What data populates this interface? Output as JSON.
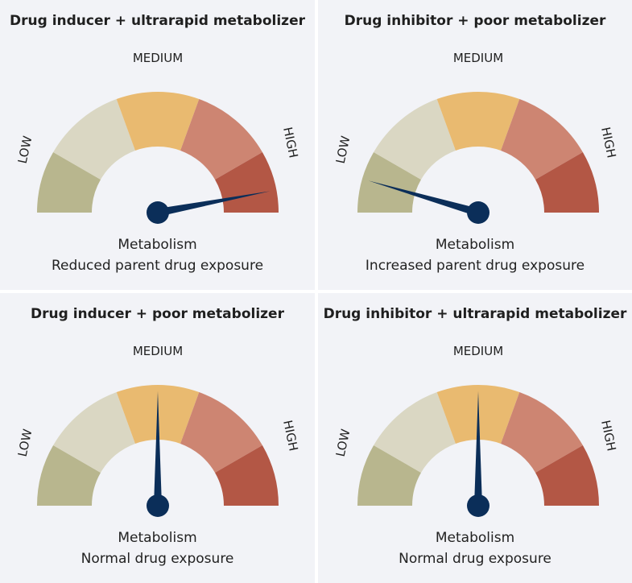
{
  "colors": {
    "panel_bg": "#f2f3f7",
    "low_outer": "#b8b68e",
    "low_inner": "#dad7c3",
    "medium": "#e9ba70",
    "high_inner": "#cd8572",
    "high_outer": "#b35745",
    "needle": "#0b2e59"
  },
  "panels": [
    {
      "title": "Drug inducer + ultrarapid metabolizer",
      "label_low": "LOW",
      "label_medium": "MEDIUM",
      "label_high": "HIGH",
      "caption_title": "Metabolism",
      "caption_text": "Reduced parent drug exposure",
      "needle_level": 0.94
    },
    {
      "title": "Drug inhibitor + poor metabolizer",
      "label_low": "LOW",
      "label_medium": "MEDIUM",
      "label_high": "HIGH",
      "caption_title": "Metabolism",
      "caption_text": "Increased parent drug exposure",
      "needle_level": 0.09
    },
    {
      "title": "Drug inducer + poor metabolizer",
      "label_low": "LOW",
      "label_medium": "MEDIUM",
      "label_high": "HIGH",
      "caption_title": "Metabolism",
      "caption_text": "Normal drug exposure",
      "needle_level": 0.5
    },
    {
      "title": "Drug inhibitor + ultrarapid metabolizer",
      "label_low": "LOW",
      "label_medium": "MEDIUM",
      "label_high": "HIGH",
      "caption_title": "Metabolism",
      "caption_text": "Normal drug exposure",
      "needle_level": 0.5
    }
  ]
}
